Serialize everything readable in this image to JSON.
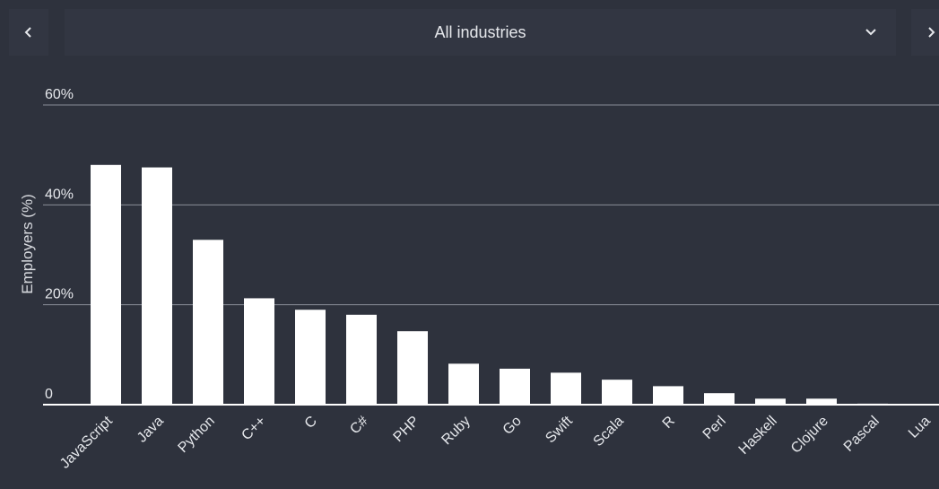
{
  "header": {
    "prev_icon": "chevron-left-icon",
    "next_icon": "chevron-right-icon",
    "dropdown_icon": "chevron-down-icon",
    "selected_industry": "All industries"
  },
  "chart_data": {
    "type": "bar",
    "ylabel": "Employers (%)",
    "xlabel": "",
    "ylim": [
      0,
      60
    ],
    "yticks": [
      {
        "value": 0,
        "label": "0"
      },
      {
        "value": 20,
        "label": "20%"
      },
      {
        "value": 40,
        "label": "40%"
      },
      {
        "value": 60,
        "label": "60%"
      }
    ],
    "grid": true,
    "bar_color": "#ffffff",
    "categories": [
      "JavaScript",
      "Java",
      "Python",
      "C++",
      "C",
      "C#",
      "PHP",
      "Ruby",
      "Go",
      "Swift",
      "Scala",
      "R",
      "Perl",
      "Haskell",
      "Clojure",
      "Pascal",
      "Lua"
    ],
    "values": [
      48,
      47.5,
      33,
      21.3,
      19,
      18,
      14.7,
      8.2,
      7.2,
      6.4,
      5,
      3.7,
      2.3,
      1.2,
      1.2,
      0.2,
      0.1
    ]
  }
}
